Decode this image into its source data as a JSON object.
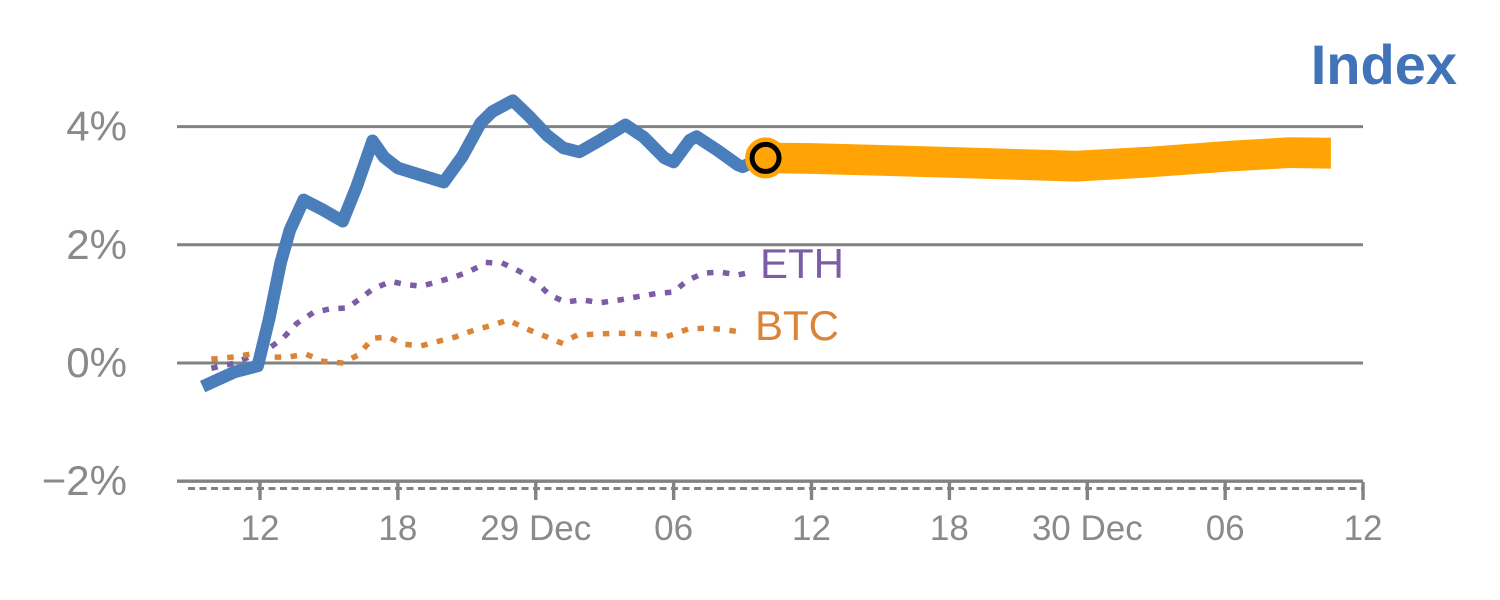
{
  "title": {
    "text": "Index"
  },
  "series_labels": {
    "eth": "ETH",
    "btc": "BTC"
  },
  "colors": {
    "index_line": "#4A7EBB",
    "forecast_band": "#FFA404",
    "eth": "#7B5DA3",
    "btc": "#DC8435",
    "title": "#4173B8",
    "grid": "#828282",
    "tick_text": "#8A8A8A",
    "marker_ring": "#000000"
  },
  "chart_data": {
    "type": "line",
    "title": "Index",
    "xlabel": "",
    "ylabel": "",
    "x_axis": {
      "unit": "hours (Dec 28 – Dec 30)",
      "ticks": [
        12,
        18,
        24,
        30,
        36,
        42,
        48,
        54,
        60
      ],
      "tick_labels": [
        "12",
        "18",
        "29 Dec",
        "06",
        "12",
        "18",
        "30 Dec",
        "06",
        "12"
      ],
      "range": [
        8.4,
        66
      ],
      "minor_dashed_spine": true
    },
    "y_axis": {
      "unit": "percent change",
      "ticks": [
        4,
        2,
        0,
        -2
      ],
      "tick_labels": [
        "4%",
        "2%",
        "0%",
        "−2%"
      ],
      "range": [
        -2,
        4.6
      ],
      "grid": true
    },
    "legend_position": "inline-labels-right-of-lines",
    "series": [
      {
        "name": "Index",
        "style": "solid",
        "color": "#4A7EBB",
        "points": [
          [
            9.5,
            -0.4
          ],
          [
            10.9,
            -0.15
          ],
          [
            11.9,
            -0.05
          ],
          [
            12.4,
            0.75
          ],
          [
            12.9,
            1.7
          ],
          [
            13.3,
            2.25
          ],
          [
            13.9,
            2.76
          ],
          [
            14.7,
            2.6
          ],
          [
            15.6,
            2.4
          ],
          [
            16.2,
            2.98
          ],
          [
            16.9,
            3.76
          ],
          [
            17.4,
            3.48
          ],
          [
            18.0,
            3.3
          ],
          [
            19.0,
            3.18
          ],
          [
            20.0,
            3.06
          ],
          [
            20.8,
            3.49
          ],
          [
            21.6,
            4.06
          ],
          [
            22.1,
            4.25
          ],
          [
            23.0,
            4.44
          ],
          [
            23.7,
            4.18
          ],
          [
            24.5,
            3.85
          ],
          [
            25.2,
            3.64
          ],
          [
            25.9,
            3.57
          ],
          [
            26.8,
            3.77
          ],
          [
            27.9,
            4.03
          ],
          [
            28.7,
            3.82
          ],
          [
            29.6,
            3.47
          ],
          [
            30.0,
            3.4
          ],
          [
            30.7,
            3.77
          ],
          [
            31.0,
            3.83
          ],
          [
            31.9,
            3.6
          ],
          [
            32.8,
            3.35
          ],
          [
            33.0,
            3.32
          ],
          [
            33.6,
            3.43
          ],
          [
            34.0,
            3.47
          ]
        ]
      },
      {
        "name": "Index forecast",
        "style": "band",
        "color": "#FFA404",
        "half_width": 0.26,
        "center": [
          [
            34.0,
            3.47
          ],
          [
            36.0,
            3.46
          ],
          [
            39.8,
            3.42
          ],
          [
            44.2,
            3.37
          ],
          [
            47.5,
            3.33
          ],
          [
            50.7,
            3.4
          ],
          [
            54.2,
            3.5
          ],
          [
            56.8,
            3.56
          ],
          [
            58.6,
            3.55
          ]
        ]
      },
      {
        "name": "ETH",
        "style": "dotted",
        "color": "#7B5DA3",
        "points": [
          [
            10.0,
            -0.08
          ],
          [
            10.9,
            0.0
          ],
          [
            11.7,
            0.13
          ],
          [
            12.4,
            0.25
          ],
          [
            13.0,
            0.42
          ],
          [
            13.6,
            0.67
          ],
          [
            14.3,
            0.85
          ],
          [
            15.1,
            0.92
          ],
          [
            15.8,
            0.93
          ],
          [
            16.4,
            1.1
          ],
          [
            16.9,
            1.25
          ],
          [
            17.7,
            1.38
          ],
          [
            18.3,
            1.33
          ],
          [
            19.0,
            1.3
          ],
          [
            19.7,
            1.37
          ],
          [
            20.5,
            1.46
          ],
          [
            21.1,
            1.55
          ],
          [
            21.9,
            1.7
          ],
          [
            22.6,
            1.68
          ],
          [
            23.3,
            1.55
          ],
          [
            24.0,
            1.38
          ],
          [
            24.6,
            1.15
          ],
          [
            25.3,
            1.03
          ],
          [
            26.0,
            1.07
          ],
          [
            26.8,
            1.02
          ],
          [
            27.7,
            1.07
          ],
          [
            28.4,
            1.12
          ],
          [
            29.3,
            1.18
          ],
          [
            30.0,
            1.2
          ],
          [
            30.6,
            1.4
          ],
          [
            31.3,
            1.52
          ],
          [
            32.0,
            1.54
          ],
          [
            32.8,
            1.49
          ],
          [
            33.4,
            1.54
          ]
        ]
      },
      {
        "name": "BTC",
        "style": "dotted",
        "color": "#DC8435",
        "points": [
          [
            10.0,
            0.07
          ],
          [
            10.8,
            0.1
          ],
          [
            11.6,
            0.15
          ],
          [
            12.4,
            0.1
          ],
          [
            13.2,
            0.1
          ],
          [
            14.0,
            0.15
          ],
          [
            14.7,
            0.03
          ],
          [
            15.6,
            0.0
          ],
          [
            16.3,
            0.14
          ],
          [
            16.9,
            0.42
          ],
          [
            17.6,
            0.44
          ],
          [
            18.2,
            0.32
          ],
          [
            19.0,
            0.29
          ],
          [
            19.7,
            0.36
          ],
          [
            20.5,
            0.44
          ],
          [
            21.2,
            0.54
          ],
          [
            22.1,
            0.64
          ],
          [
            22.8,
            0.73
          ],
          [
            23.5,
            0.59
          ],
          [
            24.3,
            0.47
          ],
          [
            25.1,
            0.34
          ],
          [
            25.8,
            0.47
          ],
          [
            26.7,
            0.49
          ],
          [
            27.4,
            0.5
          ],
          [
            28.2,
            0.5
          ],
          [
            29.1,
            0.49
          ],
          [
            29.8,
            0.46
          ],
          [
            30.6,
            0.57
          ],
          [
            31.4,
            0.59
          ],
          [
            32.1,
            0.57
          ],
          [
            33.0,
            0.52
          ]
        ]
      }
    ],
    "endpoint_marker": {
      "series": "Index",
      "x": 34.0,
      "y": 3.47
    }
  }
}
